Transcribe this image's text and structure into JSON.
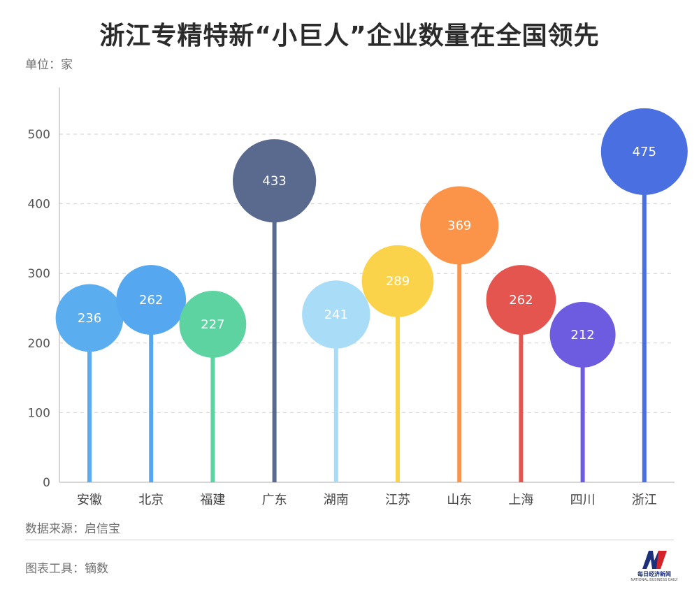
{
  "chart_data": {
    "type": "lollipop-bubble",
    "title": "浙江专精特新“小巨人”企业数量在全国领先",
    "unit_label": "单位：家",
    "categories": [
      "安徽",
      "北京",
      "福建",
      "广东",
      "湖南",
      "江苏",
      "山东",
      "上海",
      "四川",
      "浙江"
    ],
    "values": [
      236,
      262,
      227,
      433,
      241,
      289,
      369,
      262,
      212,
      475
    ],
    "colors": [
      "#5aaef0",
      "#55a8f0",
      "#5ed3a2",
      "#5a6a8e",
      "#a8dcf7",
      "#fbd34a",
      "#fb9448",
      "#e45550",
      "#6d5ce0",
      "#4a6fe0"
    ],
    "ylim": [
      0,
      550
    ],
    "yticks": [
      0,
      100,
      200,
      300,
      400,
      500
    ],
    "grid": "horizontal-dashed",
    "legend": "none"
  },
  "footer": {
    "source": "数据来源：启信宝",
    "tool": "图表工具：镝数"
  },
  "logo": {
    "cn": "每日经济新闻",
    "en": "NATIONAL BUSINESS DAILY"
  }
}
